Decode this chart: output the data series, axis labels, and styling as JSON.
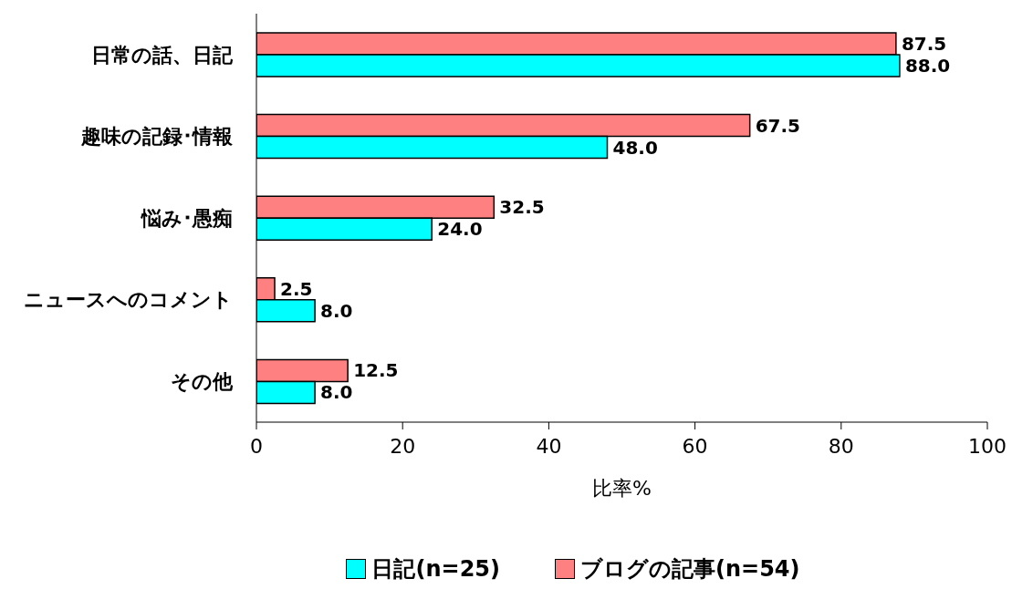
{
  "chart_data": {
    "type": "bar",
    "orientation": "horizontal",
    "xlabel": "比率%",
    "categories": [
      "日常の話、日記",
      "趣味の記録･情報",
      "悩み･愚痴",
      "ニュースへのコメント",
      "その他"
    ],
    "series": [
      {
        "name": "日記(n=25)",
        "color": "#00ffff",
        "values": [
          88.0,
          48.0,
          24.0,
          8.0,
          8.0
        ],
        "value_labels": [
          "88.0",
          "48.0",
          "24.0",
          "8.0",
          "8.0"
        ]
      },
      {
        "name": "ブログの記事(n=54)",
        "color": "#ff8080",
        "values": [
          87.5,
          67.5,
          32.5,
          2.5,
          12.5
        ],
        "value_labels": [
          "87.5",
          "67.5",
          "32.5",
          "2.5",
          "12.5"
        ]
      }
    ],
    "xlim": [
      0,
      100
    ],
    "xticks": [
      0,
      20,
      40,
      60,
      80,
      100
    ],
    "legend": "bottom"
  }
}
